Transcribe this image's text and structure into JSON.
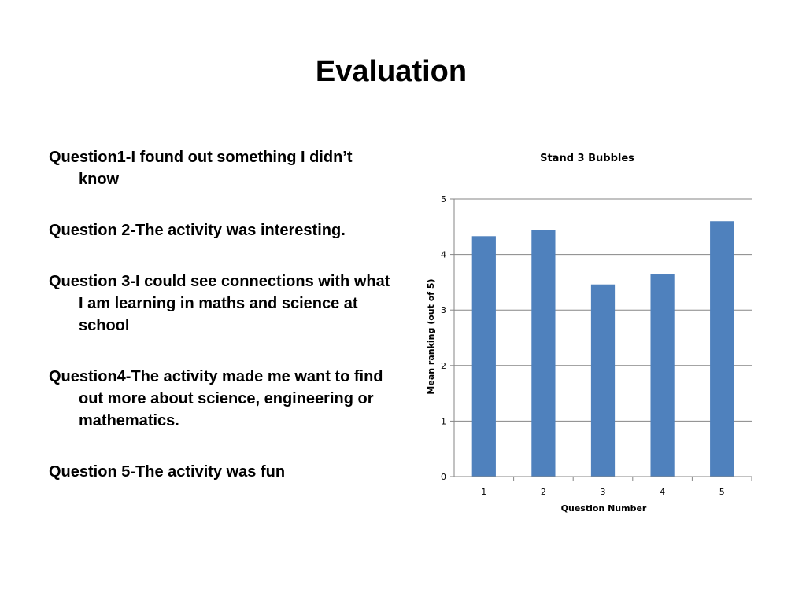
{
  "slide": {
    "title": "Evaluation"
  },
  "questions": [
    "Question1-I found out something I didn’t know",
    "Question 2-The activity was interesting.",
    "Question 3-I could see connections with what I am learning in maths and science at school",
    "Question4-The activity made me want to find out more about science, engineering or mathematics.",
    "Question 5-The activity was fun"
  ],
  "chart_data": {
    "type": "bar",
    "title": "Stand 3 Bubbles",
    "xlabel": "Question Number",
    "ylabel": "Mean ranking (out of 5)",
    "categories": [
      "1",
      "2",
      "3",
      "4",
      "5"
    ],
    "values": [
      4.33,
      4.44,
      3.46,
      3.64,
      4.6
    ],
    "ylim": [
      0,
      5
    ],
    "yticks": [
      "0",
      "1",
      "2",
      "3",
      "4",
      "5"
    ],
    "grid": true,
    "bar_color": "#4F81BD",
    "grid_color": "#868686"
  }
}
